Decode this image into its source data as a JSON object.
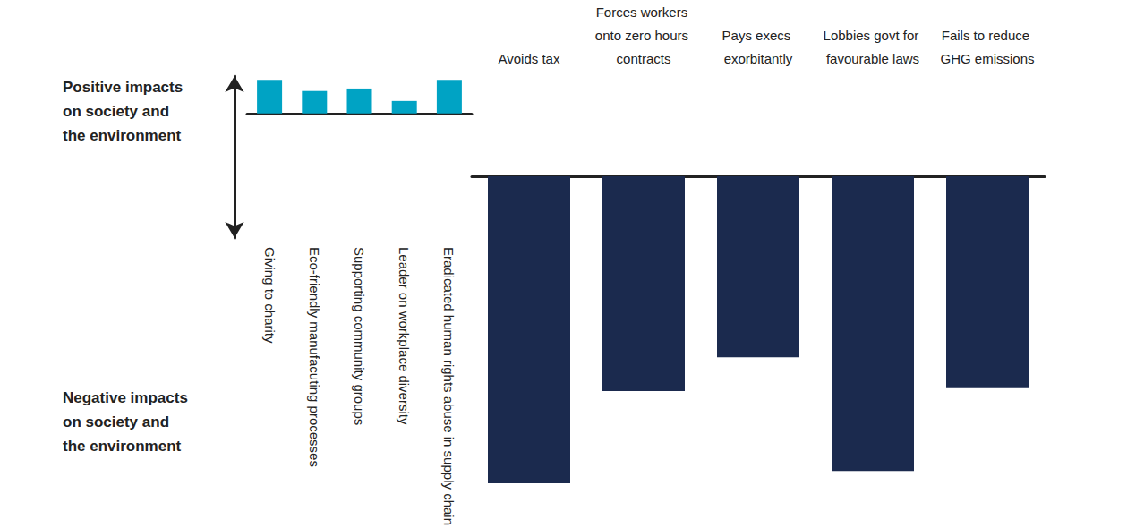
{
  "chart_data": {
    "type": "bar",
    "annotations": [
      "Positive impacts on society and the environment",
      "Negative impacts on society and the environment"
    ],
    "categories": [
      "Giving to charity",
      "Eco-friendly manufacuting processes",
      "Supporting community groups",
      "Leader on workplace diversity",
      "Eradicated human rights abuse in supply chain",
      "Avoids tax",
      "Forces workers onto zero hours contracts",
      "Pays execs exorbitantly",
      "Lobbies govt for favourable laws",
      "Fails to reduce GHG emissions"
    ],
    "values": [
      2.7,
      1.8,
      2.0,
      1.0,
      2.7,
      -10,
      -7,
      -5.9,
      -9.6,
      -6.9
    ],
    "colors": [
      "#00a3c4",
      "#00a3c4",
      "#00a3c4",
      "#00a3c4",
      "#00a3c4",
      "#1b2a4e",
      "#1b2a4e",
      "#1b2a4e",
      "#1b2a4e",
      "#1b2a4e"
    ],
    "ylim": [
      -10,
      3
    ],
    "yticks": [],
    "grid": false,
    "tick_labels": false
  }
}
